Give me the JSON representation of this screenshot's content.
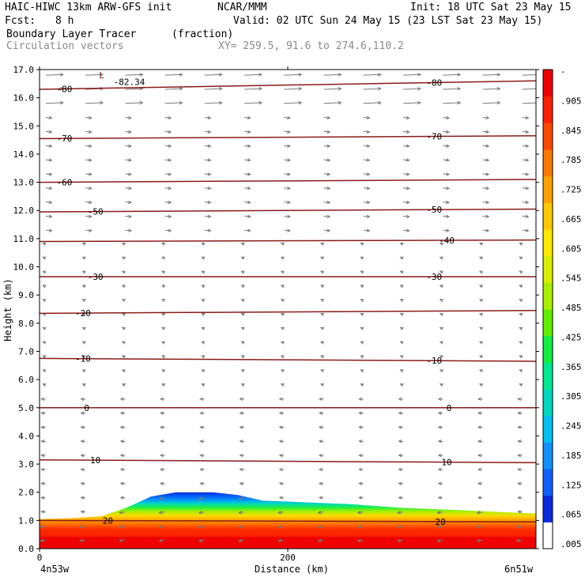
{
  "header": {
    "model": "HAIC-HIWC 13km ARW-GFS init",
    "org": "NCAR/MMM",
    "init": "Init: 18 UTC Sat 23 May 15",
    "fcst_label": "Fcst:",
    "fcst_value": "8 h",
    "valid": "Valid: 02 UTC Sun 24 May 15 (23 LST Sat 23 May 15)",
    "field": "Boundary Layer Tracer",
    "units": "(fraction)",
    "vectors": "Circulation vectors",
    "xy": "XY= 259.5, 91.6 to 274.6,110.2"
  },
  "colors": {
    "contour": "#8b1a1a",
    "vector": "#7a7a7a",
    "palette": [
      "#ffffff",
      "#0a2ae0",
      "#1060ff",
      "#1090ff",
      "#00c0f0",
      "#00d8c0",
      "#00e890",
      "#10f040",
      "#60f000",
      "#a8f000",
      "#d8f000",
      "#ffe800",
      "#ffc800",
      "#ffa000",
      "#ff7800",
      "#ff4800",
      "#ff2000",
      "#f00000"
    ]
  },
  "chart_data": {
    "type": "heatmap",
    "title": "Boundary Layer Tracer",
    "xlabel": "Distance (km)",
    "ylabel": "Height (km)",
    "xlim": [
      0,
      400
    ],
    "ylim": [
      0.0,
      17.0
    ],
    "x_ticks": [
      {
        "value": 0,
        "label": "0"
      },
      {
        "value": 200,
        "label": "200"
      }
    ],
    "y_ticks": [
      {
        "value": 0.0,
        "label": "0.0"
      },
      {
        "value": 1.0,
        "label": "1.0"
      },
      {
        "value": 2.0,
        "label": "2.0"
      },
      {
        "value": 3.0,
        "label": "3.0"
      },
      {
        "value": 4.0,
        "label": "4.0"
      },
      {
        "value": 5.0,
        "label": "5.0"
      },
      {
        "value": 6.0,
        "label": "6.0"
      },
      {
        "value": 7.0,
        "label": "7.0"
      },
      {
        "value": 8.0,
        "label": "8.0"
      },
      {
        "value": 9.0,
        "label": "9.0"
      },
      {
        "value": 10.0,
        "label": "10.0"
      },
      {
        "value": 11.0,
        "label": "11.0"
      },
      {
        "value": 12.0,
        "label": "12.0"
      },
      {
        "value": 13.0,
        "label": "13.0"
      },
      {
        "value": 14.0,
        "label": "14.0"
      },
      {
        "value": 15.0,
        "label": "15.0"
      },
      {
        "value": 16.0,
        "label": "16.0"
      },
      {
        "value": 17.0,
        "label": "17.0"
      }
    ],
    "x_endpoints": {
      "left": "4n53w",
      "right": "6n51w"
    },
    "colorbar_labels": [
      "-",
      ".905",
      ".845",
      ".785",
      ".725",
      ".665",
      ".605",
      ".545",
      ".485",
      ".425",
      ".365",
      ".305",
      ".245",
      ".185",
      ".125",
      ".065",
      ".005"
    ],
    "boundary_layer_top_km": [
      [
        0,
        1.05
      ],
      [
        25,
        1.08
      ],
      [
        50,
        1.15
      ],
      [
        70,
        1.45
      ],
      [
        90,
        1.85
      ],
      [
        110,
        2.0
      ],
      [
        140,
        2.0
      ],
      [
        160,
        1.9
      ],
      [
        180,
        1.7
      ],
      [
        210,
        1.65
      ],
      [
        250,
        1.58
      ],
      [
        290,
        1.45
      ],
      [
        330,
        1.38
      ],
      [
        370,
        1.3
      ],
      [
        400,
        1.25
      ]
    ],
    "temperature_contours": [
      {
        "label": "-80",
        "y_left": 16.3,
        "y_right": 16.6,
        "label_x": [
          20,
          318
        ]
      },
      {
        "label": "-82.34",
        "y_left": null,
        "y_right": null,
        "label_x": [
          52
        ]
      },
      {
        "label": "-70",
        "y_left": 14.55,
        "y_right": 14.65,
        "label_x": [
          20,
          318
        ]
      },
      {
        "label": "-60",
        "y_left": 13.0,
        "y_right": 13.1,
        "label_x": [
          20
        ]
      },
      {
        "label": "-50",
        "y_left": 11.95,
        "y_right": 12.05,
        "label_x": [
          45,
          318
        ]
      },
      {
        "label": "-40",
        "y_left": 10.9,
        "y_right": 10.95,
        "label_x": [
          328
        ]
      },
      {
        "label": "-30",
        "y_left": 9.65,
        "y_right": 9.65,
        "label_x": [
          45,
          318
        ]
      },
      {
        "label": "-20",
        "y_left": 8.35,
        "y_right": 8.45,
        "label_x": [
          35
        ]
      },
      {
        "label": "-10",
        "y_left": 6.75,
        "y_right": 6.65,
        "label_x": [
          35,
          318
        ]
      },
      {
        "label": "0",
        "y_left": 5.0,
        "y_right": 5.0,
        "label_x": [
          38,
          330
        ]
      },
      {
        "label": "10",
        "y_left": 3.15,
        "y_right": 3.05,
        "label_x": [
          45,
          328
        ]
      },
      {
        "label": "20",
        "y_left": 1.0,
        "y_right": 0.95,
        "label_x": [
          55,
          323
        ]
      }
    ],
    "annotations": [
      {
        "text": "L",
        "x": 50,
        "y": 17.0
      }
    ]
  }
}
